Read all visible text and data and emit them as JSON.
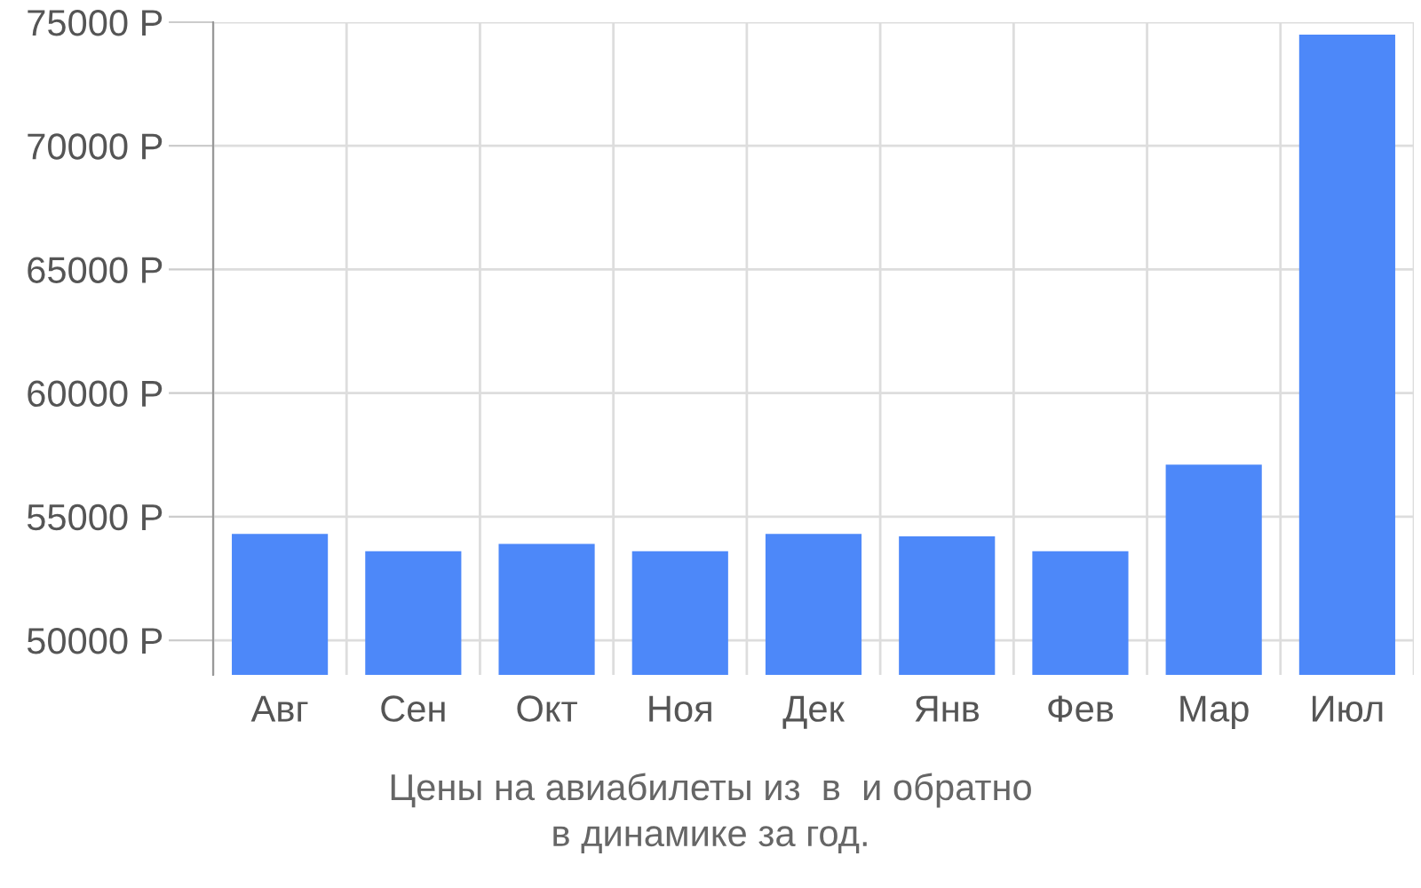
{
  "chart_data": {
    "type": "bar",
    "categories": [
      "Авг",
      "Сен",
      "Окт",
      "Ноя",
      "Дек",
      "Янв",
      "Фев",
      "Мар",
      "Июл"
    ],
    "values": [
      54300,
      53600,
      53900,
      53600,
      54300,
      54200,
      53600,
      57100,
      74500
    ],
    "color": "#4d88f9",
    "ylim": [
      48600,
      75000
    ],
    "yticks": [
      {
        "value": 50000,
        "label": "50000 Р"
      },
      {
        "value": 55000,
        "label": "55000 Р"
      },
      {
        "value": 60000,
        "label": "60000 Р"
      },
      {
        "value": 65000,
        "label": "65000 Р"
      },
      {
        "value": 70000,
        "label": "70000 Р"
      },
      {
        "value": 75000,
        "label": "75000 Р"
      }
    ],
    "grid": true,
    "annotations": [
      "Цены на авиабилеты из  в  и обратно",
      "в динамике за год."
    ]
  }
}
